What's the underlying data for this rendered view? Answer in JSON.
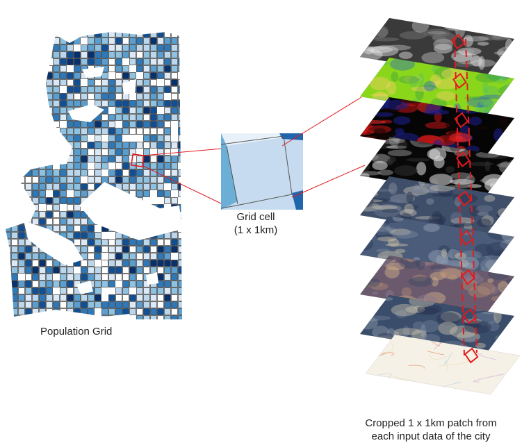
{
  "labels": {
    "population_grid": "Population Grid",
    "grid_cell_line1": "Grid cell",
    "grid_cell_line2": "(1 x 1km)",
    "patch_line1": "Cropped 1 x 1km patch from",
    "patch_line2": "each input data of the city"
  },
  "population_grid": {
    "palette": [
      "#ffffff",
      "#dbe9f6",
      "#bcd7ec",
      "#8fc1e0",
      "#5a9ecf",
      "#2f78b8",
      "#104f93",
      "#08306b"
    ],
    "cell_outline": "#1b1b1b",
    "highlight_color": "#e31a1c"
  },
  "grid_cell": {
    "colors": [
      "#c6dbef",
      "#e8f1fa",
      "#6baed6",
      "#2166ac"
    ],
    "edge_color": "#555555"
  },
  "layers": [
    {
      "name": "elevation",
      "colors": [
        "#3a3a3a",
        "#7c7c7c",
        "#c4c4c4",
        "#e8e8e8"
      ]
    },
    {
      "name": "land-cover",
      "colors": [
        "#8ad61a",
        "#f4d067",
        "#3fa33a",
        "#5dc25a",
        "#2f6fb5"
      ]
    },
    {
      "name": "night-lights-red",
      "colors": [
        "#050505",
        "#1a0606",
        "#c41414",
        "#ff2a2a",
        "#1b2090"
      ]
    },
    {
      "name": "night-lights-gray",
      "colors": [
        "#080808",
        "#303030",
        "#8a8a8a",
        "#e0e0e0"
      ]
    },
    {
      "name": "satellite-rgb-1",
      "colors": [
        "#3f4f6a",
        "#6d7b8f",
        "#c7c1b2",
        "#232f4a",
        "#8b93a2"
      ]
    },
    {
      "name": "satellite-rgb-2",
      "colors": [
        "#4a5c79",
        "#7a8aa0",
        "#d2c6a8",
        "#2b3a58",
        "#9ca7b8"
      ]
    },
    {
      "name": "satellite-rgb-3",
      "colors": [
        "#6b5a6e",
        "#b08a73",
        "#d7b48a",
        "#3b4664",
        "#8d7a8f"
      ]
    },
    {
      "name": "satellite-rgb-4",
      "colors": [
        "#3a4d6b",
        "#6f7e96",
        "#c9c2ae",
        "#27334f",
        "#8e9aab"
      ]
    },
    {
      "name": "street-map",
      "colors": [
        "#f6f1e6",
        "#e8e2c4",
        "#bfd9ea",
        "#e6a07a",
        "#d7b6d9"
      ]
    }
  ],
  "connector_color": "#e31a1c"
}
